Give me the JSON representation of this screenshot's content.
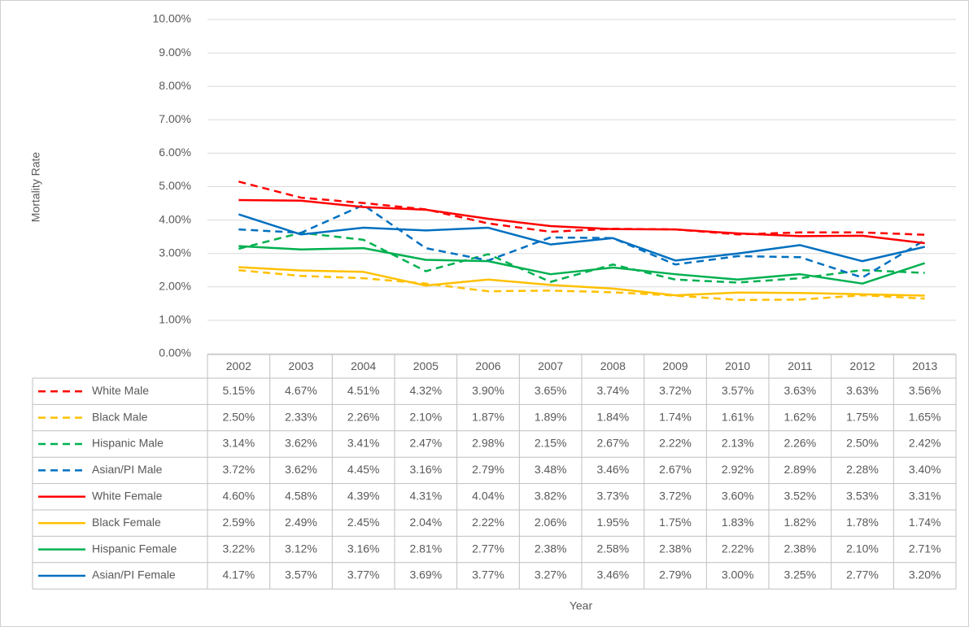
{
  "chart_data": {
    "type": "line",
    "y_label": "Mortality Rate",
    "x_label": "Year",
    "categories": [
      "2002",
      "2003",
      "2004",
      "2005",
      "2006",
      "2007",
      "2008",
      "2009",
      "2010",
      "2011",
      "2012",
      "2013"
    ],
    "ylim": [
      0,
      10
    ],
    "yticks": [
      {
        "value": 0,
        "label": "0.00%"
      },
      {
        "value": 1,
        "label": "1.00%"
      },
      {
        "value": 2,
        "label": "2.00%"
      },
      {
        "value": 3,
        "label": "3.00%"
      },
      {
        "value": 4,
        "label": "4.00%"
      },
      {
        "value": 5,
        "label": "5.00%"
      },
      {
        "value": 6,
        "label": "6.00%"
      },
      {
        "value": 7,
        "label": "7.00%"
      },
      {
        "value": 8,
        "label": "8.00%"
      },
      {
        "value": 9,
        "label": "9.00%"
      },
      {
        "value": 10,
        "label": "10.00%"
      }
    ],
    "grid": true,
    "series": [
      {
        "name": "White Male",
        "color": "#ff0000",
        "dashed": true,
        "values": [
          5.15,
          4.67,
          4.51,
          4.32,
          3.9,
          3.65,
          3.74,
          3.72,
          3.57,
          3.63,
          3.63,
          3.56
        ],
        "value_labels": [
          "5.15%",
          "4.67%",
          "4.51%",
          "4.32%",
          "3.90%",
          "3.65%",
          "3.74%",
          "3.72%",
          "3.57%",
          "3.63%",
          "3.63%",
          "3.56%"
        ]
      },
      {
        "name": "Black Male",
        "color": "#ffc000",
        "dashed": true,
        "values": [
          2.5,
          2.33,
          2.26,
          2.1,
          1.87,
          1.89,
          1.84,
          1.74,
          1.61,
          1.62,
          1.75,
          1.65
        ],
        "value_labels": [
          "2.50%",
          "2.33%",
          "2.26%",
          "2.10%",
          "1.87%",
          "1.89%",
          "1.84%",
          "1.74%",
          "1.61%",
          "1.62%",
          "1.75%",
          "1.65%"
        ]
      },
      {
        "name": "Hispanic Male",
        "color": "#00b050",
        "dashed": true,
        "values": [
          3.14,
          3.62,
          3.41,
          2.47,
          2.98,
          2.15,
          2.67,
          2.22,
          2.13,
          2.26,
          2.5,
          2.42
        ],
        "value_labels": [
          "3.14%",
          "3.62%",
          "3.41%",
          "2.47%",
          "2.98%",
          "2.15%",
          "2.67%",
          "2.22%",
          "2.13%",
          "2.26%",
          "2.50%",
          "2.42%"
        ]
      },
      {
        "name": "Asian/PI Male",
        "color": "#0070c0",
        "dashed": true,
        "values": [
          3.72,
          3.62,
          4.45,
          3.16,
          2.79,
          3.48,
          3.46,
          2.67,
          2.92,
          2.89,
          2.28,
          3.4
        ],
        "value_labels": [
          "3.72%",
          "3.62%",
          "4.45%",
          "3.16%",
          "2.79%",
          "3.48%",
          "3.46%",
          "2.67%",
          "2.92%",
          "2.89%",
          "2.28%",
          "3.40%"
        ]
      },
      {
        "name": "White Female",
        "color": "#ff0000",
        "dashed": false,
        "values": [
          4.6,
          4.58,
          4.39,
          4.31,
          4.04,
          3.82,
          3.73,
          3.72,
          3.6,
          3.52,
          3.53,
          3.31
        ],
        "value_labels": [
          "4.60%",
          "4.58%",
          "4.39%",
          "4.31%",
          "4.04%",
          "3.82%",
          "3.73%",
          "3.72%",
          "3.60%",
          "3.52%",
          "3.53%",
          "3.31%"
        ]
      },
      {
        "name": "Black Female",
        "color": "#ffc000",
        "dashed": false,
        "values": [
          2.59,
          2.49,
          2.45,
          2.04,
          2.22,
          2.06,
          1.95,
          1.75,
          1.83,
          1.82,
          1.78,
          1.74
        ],
        "value_labels": [
          "2.59%",
          "2.49%",
          "2.45%",
          "2.04%",
          "2.22%",
          "2.06%",
          "1.95%",
          "1.75%",
          "1.83%",
          "1.82%",
          "1.78%",
          "1.74%"
        ]
      },
      {
        "name": "Hispanic Female",
        "color": "#00b050",
        "dashed": false,
        "values": [
          3.22,
          3.12,
          3.16,
          2.81,
          2.77,
          2.38,
          2.58,
          2.38,
          2.22,
          2.38,
          2.1,
          2.71
        ],
        "value_labels": [
          "3.22%",
          "3.12%",
          "3.16%",
          "2.81%",
          "2.77%",
          "2.38%",
          "2.58%",
          "2.38%",
          "2.22%",
          "2.38%",
          "2.10%",
          "2.71%"
        ]
      },
      {
        "name": "Asian/PI Female",
        "color": "#0070c0",
        "dashed": false,
        "values": [
          4.17,
          3.57,
          3.77,
          3.69,
          3.77,
          3.27,
          3.46,
          2.79,
          3.0,
          3.25,
          2.77,
          3.2
        ],
        "value_labels": [
          "4.17%",
          "3.57%",
          "3.77%",
          "3.69%",
          "3.77%",
          "3.27%",
          "3.46%",
          "2.79%",
          "3.00%",
          "3.25%",
          "2.77%",
          "3.20%"
        ]
      }
    ]
  }
}
